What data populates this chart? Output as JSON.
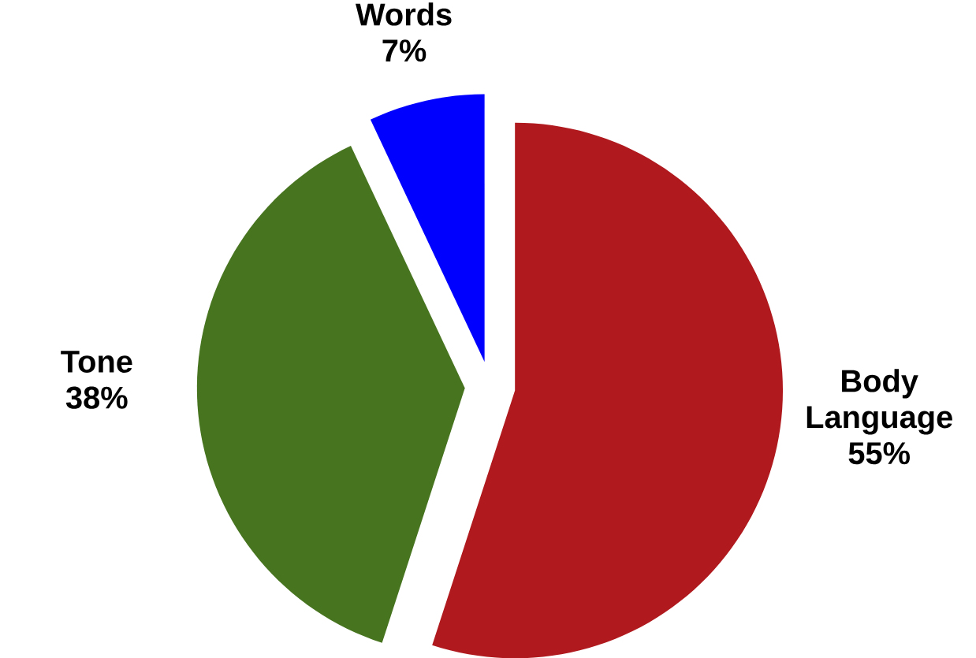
{
  "chart_data": {
    "type": "pie",
    "categories": [
      "Body Language",
      "Tone",
      "Words"
    ],
    "values": [
      55,
      38,
      7
    ],
    "colors": [
      "#b01a1e",
      "#47741f",
      "#0000ff"
    ],
    "value_labels": [
      "55%",
      "38%",
      "7%"
    ]
  }
}
